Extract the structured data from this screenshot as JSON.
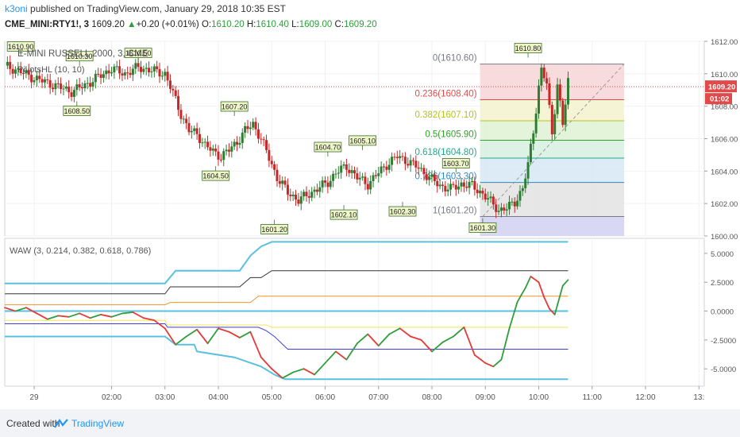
{
  "header": {
    "publisher": "k3oni",
    "published_line": " published on TradingView.com, January 29, 2018 10:35 EST",
    "symbol": "CME_MINI:RTY1!, 3",
    "last": "1609.20",
    "change": "+0.20 (+0.01%)",
    "o_label": "O:",
    "o_val": "1610.20",
    "h_label": "H:",
    "h_val": "1610.40",
    "l_label": "L:",
    "l_val": "1609.00",
    "c_label": "C:",
    "c_val": "1609.20"
  },
  "chart_data": [
    {
      "type": "candlestick",
      "title": "E-MINI RUSSELL 2000, 3, CME",
      "study": "PivotsHL (10, 10)",
      "ylim": [
        1600,
        1612
      ],
      "y_ticks": [
        "1612.00",
        "1610.00",
        "1608.00",
        "1606.00",
        "1604.00",
        "1602.00",
        "1600.00"
      ],
      "y_tick_values": [
        1612,
        1610,
        1608,
        1606,
        1604,
        1602,
        1600
      ],
      "price_badge": "1609.20",
      "timer_badge": "01:02",
      "close_path_times": [
        0.0,
        0.25,
        0.5,
        0.75,
        1.0,
        1.25,
        1.5,
        1.75,
        2.0,
        2.25,
        2.5,
        2.75,
        3.0,
        3.15,
        3.3,
        3.45,
        3.6,
        3.75,
        3.9,
        4.05,
        4.2,
        4.35,
        4.5,
        4.65,
        4.8,
        4.95,
        5.1,
        5.3,
        5.5,
        5.7,
        5.9,
        6.05,
        6.2,
        6.4,
        6.6,
        6.8,
        7.0,
        7.15,
        7.35,
        7.55,
        7.75,
        7.95,
        8.15,
        8.35,
        8.55,
        8.75,
        8.95,
        9.1,
        9.25,
        9.4,
        9.55,
        9.7,
        9.8,
        9.9,
        10.0,
        10.05,
        10.15,
        10.25,
        10.35,
        10.45,
        10.55
      ],
      "close_path_prices": [
        1610.5,
        1610.2,
        1609.8,
        1609.5,
        1609.2,
        1608.9,
        1609.3,
        1609.8,
        1610.3,
        1610.0,
        1610.4,
        1610.2,
        1610.0,
        1608.8,
        1607.5,
        1606.5,
        1606.3,
        1605.6,
        1605.2,
        1604.9,
        1605.3,
        1605.8,
        1606.5,
        1606.9,
        1606.0,
        1604.8,
        1603.6,
        1602.7,
        1602.2,
        1602.6,
        1603.0,
        1603.3,
        1603.9,
        1604.3,
        1603.6,
        1603.2,
        1603.9,
        1604.4,
        1604.9,
        1604.6,
        1604.2,
        1603.6,
        1603.1,
        1602.9,
        1603.2,
        1603.1,
        1602.6,
        1602.1,
        1601.6,
        1601.7,
        1602.1,
        1602.9,
        1604.4,
        1606.5,
        1609.2,
        1610.2,
        1609.4,
        1606.3,
        1609.4,
        1606.8,
        1609.6
      ],
      "pivots": [
        {
          "label": "1610.90",
          "time": 0.3,
          "price": 1610.9,
          "kind": "high"
        },
        {
          "label": "1610.30",
          "time": 1.4,
          "price": 1610.3,
          "kind": "high"
        },
        {
          "label": "1610.50",
          "time": 2.5,
          "price": 1610.5,
          "kind": "high"
        },
        {
          "label": "1608.50",
          "time": 1.35,
          "price": 1608.5,
          "kind": "low"
        },
        {
          "label": "1607.20",
          "time": 4.3,
          "price": 1607.2,
          "kind": "high"
        },
        {
          "label": "1604.50",
          "time": 3.95,
          "price": 1604.5,
          "kind": "low"
        },
        {
          "label": "1601.20",
          "time": 5.05,
          "price": 1601.2,
          "kind": "low"
        },
        {
          "label": "1604.70",
          "time": 6.05,
          "price": 1604.7,
          "kind": "high"
        },
        {
          "label": "1605.10",
          "time": 6.7,
          "price": 1605.1,
          "kind": "high"
        },
        {
          "label": "1602.10",
          "time": 6.35,
          "price": 1602.1,
          "kind": "low"
        },
        {
          "label": "1602.30",
          "time": 7.45,
          "price": 1602.3,
          "kind": "low"
        },
        {
          "label": "1603.70",
          "time": 8.45,
          "price": 1603.7,
          "kind": "high"
        },
        {
          "label": "1601.30",
          "time": 8.95,
          "price": 1601.3,
          "kind": "low"
        },
        {
          "label": "1610.80",
          "time": 9.8,
          "price": 1610.8,
          "kind": "high"
        }
      ],
      "fib_levels": [
        {
          "label": "0(1610.60)",
          "price": 1610.6,
          "color": "#787b86",
          "fill": "#f7d5d7"
        },
        {
          "label": "0.236(1608.40)",
          "price": 1608.4,
          "color": "#e04a4a",
          "fill": "#f3f3cf"
        },
        {
          "label": "0.382(1607.10)",
          "price": 1607.1,
          "color": "#b5c21a",
          "fill": "#dff2d4"
        },
        {
          "label": "0.5(1605.90)",
          "price": 1605.9,
          "color": "#33a02c",
          "fill": "#d6f0df"
        },
        {
          "label": "0.618(1604.80)",
          "price": 1604.8,
          "color": "#1fa88a",
          "fill": "#d6e8f5"
        },
        {
          "label": "0.786(1603.30)",
          "price": 1603.3,
          "color": "#2f8ac4",
          "fill": "#e3e3e3"
        },
        {
          "label": "1(1601.20)",
          "price": 1601.2,
          "color": "#787b86",
          "fill": "#d1d1f2"
        }
      ],
      "fib_band_bottom": 1600,
      "fib_time_start": 8.9,
      "fib_time_end": 11.6,
      "trend_start": {
        "time": 8.95,
        "price": 1601.2
      },
      "trend_end": {
        "time": 11.6,
        "price": 1610.6
      },
      "hline": 1609.2
    },
    {
      "type": "line",
      "title": "WAW (3, 0.214, 0.382, 0.618, 0.786)",
      "ylim": [
        -6.5,
        6.3
      ],
      "y_ticks": [
        "5.0000",
        "2.5000",
        "0.0000",
        "-2.5000",
        "-5.0000"
      ],
      "y_tick_values": [
        5,
        2.5,
        0,
        -2.5,
        -5
      ],
      "main_times": [
        0.0,
        0.2,
        0.4,
        0.6,
        0.8,
        1.0,
        1.2,
        1.4,
        1.6,
        1.8,
        2.0,
        2.2,
        2.4,
        2.6,
        2.8,
        3.0,
        3.2,
        3.4,
        3.6,
        3.8,
        4.0,
        4.2,
        4.4,
        4.6,
        4.8,
        5.0,
        5.2,
        5.4,
        5.6,
        5.8,
        6.0,
        6.2,
        6.4,
        6.6,
        6.8,
        7.0,
        7.2,
        7.4,
        7.6,
        7.8,
        8.0,
        8.2,
        8.4,
        8.6,
        8.8,
        9.0,
        9.15,
        9.3,
        9.45,
        9.6,
        9.75,
        9.85,
        10.0,
        10.1,
        10.2,
        10.3,
        10.45,
        10.55
      ],
      "main_values": [
        0.3,
        0.0,
        0.3,
        -0.2,
        -0.7,
        -0.4,
        -0.5,
        -0.2,
        -0.6,
        -0.3,
        -0.5,
        -0.2,
        -0.1,
        -0.6,
        -0.8,
        -1.5,
        -2.9,
        -2.2,
        -1.6,
        -2.8,
        -1.5,
        -1.8,
        -2.3,
        -1.8,
        -4.0,
        -5.0,
        -5.8,
        -5.3,
        -5.0,
        -5.5,
        -4.5,
        -3.5,
        -4.2,
        -2.8,
        -2.0,
        -3.0,
        -2.0,
        -1.5,
        -2.2,
        -2.5,
        -3.5,
        -2.7,
        -2.2,
        -1.4,
        -3.8,
        -4.5,
        -4.8,
        -4.2,
        -1.5,
        0.8,
        2.0,
        3.0,
        2.5,
        1.2,
        0.2,
        -0.3,
        2.2,
        2.7
      ],
      "series": [
        {
          "values": [
            -1.1,
            -1.1,
            -1.4,
            -1.4,
            -1.4,
            -1.7,
            -2.2,
            -3.3,
            -3.3,
            -3.3
          ],
          "times": [
            0.0,
            3.0,
            3.05,
            4.3,
            4.75,
            4.9,
            5.05,
            5.3,
            10.55,
            10.55
          ],
          "color": "#3f3fdc"
        },
        {
          "values": [
            -0.8,
            -0.8,
            -1.2,
            -1.2,
            -1.2,
            -1.4,
            -1.4,
            -1.4
          ],
          "times": [
            0.0,
            3.0,
            3.05,
            4.7,
            4.9,
            5.0,
            10.55,
            10.55
          ],
          "color": "#f3e35a"
        },
        {
          "values": [
            -2.2,
            -2.2,
            -2.9,
            -2.9,
            -3.5,
            -4.0,
            -4.8,
            -5.5,
            -5.9,
            -5.9
          ],
          "times": [
            0.0,
            3.0,
            3.2,
            3.55,
            3.6,
            4.3,
            4.8,
            5.05,
            5.25,
            10.55
          ],
          "color": "#5bc0de"
        },
        {
          "values": [
            0.0,
            0.0
          ],
          "times": [
            0.0,
            10.55
          ],
          "color": "#5bc0de"
        },
        {
          "values": [
            0.55,
            0.55,
            0.75,
            0.75,
            1.3,
            1.3
          ],
          "times": [
            0.0,
            3.0,
            3.1,
            4.6,
            4.75,
            10.55
          ],
          "color": "#f3932e"
        },
        {
          "values": [
            1.5,
            1.5,
            2.1,
            2.1,
            2.9,
            2.9,
            3.5,
            3.5
          ],
          "times": [
            0.0,
            3.0,
            3.1,
            4.4,
            4.6,
            4.8,
            5.0,
            10.55
          ],
          "color": "#333333"
        },
        {
          "values": [
            2.4,
            2.4,
            3.5,
            3.5,
            4.8,
            5.6,
            6.0,
            6.0
          ],
          "times": [
            0.0,
            3.0,
            3.2,
            4.4,
            4.6,
            4.8,
            5.0,
            10.55
          ],
          "color": "#5bc0de"
        }
      ]
    }
  ],
  "x_axis": {
    "labels": [
      "29",
      "02:00",
      "03:00",
      "04:00",
      "05:00",
      "06:00",
      "07:00",
      "08:00",
      "09:00",
      "10:00",
      "11:00",
      "12:00",
      "13:"
    ],
    "label_times": [
      0.55,
      2,
      3,
      4,
      5,
      6,
      7,
      8,
      9,
      10,
      11,
      12,
      13
    ],
    "time_range": [
      0,
      13.1
    ]
  },
  "footer": {
    "created_with": "Created with",
    "brand": "TradingView"
  }
}
